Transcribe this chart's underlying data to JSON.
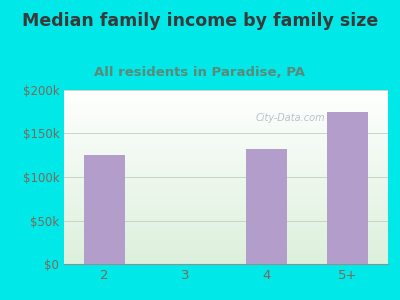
{
  "title": "Median family income by family size",
  "subtitle": "All residents in Paradise, PA",
  "categories": [
    "2",
    "3",
    "4",
    "5+"
  ],
  "values": [
    125000,
    0,
    132000,
    175000
  ],
  "bar_color": "#b39dca",
  "bg_color": "#00e8e8",
  "title_color": "#3a3a3a",
  "subtitle_color": "#5a8a7a",
  "tick_color": "#7a6a5a",
  "ylim": [
    0,
    200000
  ],
  "yticks": [
    0,
    50000,
    100000,
    150000,
    200000
  ],
  "ytick_labels": [
    "$0",
    "$50k",
    "$100k",
    "$150k",
    "$200k"
  ],
  "watermark": "City-Data.com",
  "title_fontsize": 12.5,
  "subtitle_fontsize": 9.5
}
